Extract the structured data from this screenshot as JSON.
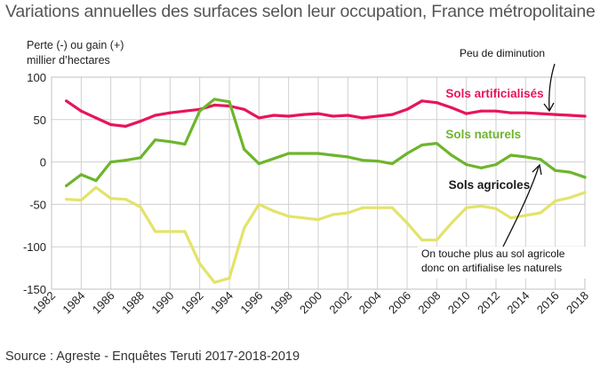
{
  "title": "Variations annuelles des surfaces selon leur occupation, France métropolitaine",
  "source": "Source : Agreste - Enquêtes Teruti 2017-2018-2019",
  "chart_data": {
    "type": "line",
    "ylabel_line1": "Perte (-) ou gain (+)",
    "ylabel_line2": "millier d’hectares",
    "ylim": [
      -150,
      100
    ],
    "yticks": [
      100,
      50,
      0,
      -50,
      -100,
      -150
    ],
    "xlim": [
      1982,
      2018
    ],
    "xticks": [
      1982,
      1984,
      1986,
      1988,
      1990,
      1992,
      1994,
      1996,
      1998,
      2000,
      2002,
      2004,
      2006,
      2008,
      2010,
      2012,
      2014,
      2016,
      2018
    ],
    "grid": true,
    "series": [
      {
        "name": "Sols artificialisés",
        "color": "#e8145a",
        "x": [
          1983,
          1984,
          1985,
          1986,
          1987,
          1988,
          1989,
          1990,
          1991,
          1992,
          1993,
          1994,
          1995,
          1996,
          1997,
          1998,
          1999,
          2000,
          2001,
          2002,
          2003,
          2004,
          2005,
          2006,
          2007,
          2008,
          2009,
          2010,
          2011,
          2012,
          2013,
          2014,
          2015,
          2016,
          2017,
          2018
        ],
        "values": [
          72,
          60,
          52,
          44,
          42,
          48,
          55,
          58,
          60,
          62,
          67,
          66,
          62,
          52,
          55,
          54,
          56,
          57,
          54,
          55,
          52,
          54,
          56,
          62,
          72,
          70,
          64,
          57,
          60,
          60,
          58,
          58,
          57,
          56,
          55,
          54
        ]
      },
      {
        "name": "Sols naturels",
        "color": "#6db52d",
        "x": [
          1983,
          1984,
          1985,
          1986,
          1987,
          1988,
          1989,
          1990,
          1991,
          1992,
          1993,
          1994,
          1995,
          1996,
          1997,
          1998,
          1999,
          2000,
          2001,
          2002,
          2003,
          2004,
          2005,
          2006,
          2007,
          2008,
          2009,
          2010,
          2011,
          2012,
          2013,
          2014,
          2015,
          2016,
          2017,
          2018
        ],
        "values": [
          -28,
          -15,
          -22,
          0,
          2,
          5,
          26,
          24,
          21,
          60,
          74,
          71,
          15,
          -2,
          4,
          10,
          10,
          10,
          8,
          6,
          2,
          1,
          -2,
          10,
          20,
          22,
          8,
          -3,
          -7,
          -3,
          8,
          6,
          3,
          -10,
          -12,
          -18
        ]
      },
      {
        "name": "Sols agricoles",
        "color": "#e3e36a",
        "x": [
          1983,
          1984,
          1985,
          1986,
          1987,
          1988,
          1989,
          1990,
          1991,
          1992,
          1993,
          1994,
          1995,
          1996,
          1997,
          1998,
          1999,
          2000,
          2001,
          2002,
          2003,
          2004,
          2005,
          2006,
          2007,
          2008,
          2009,
          2010,
          2011,
          2012,
          2013,
          2014,
          2015,
          2016,
          2017,
          2018
        ],
        "values": [
          -44,
          -45,
          -30,
          -43,
          -44,
          -53,
          -82,
          -82,
          -82,
          -120,
          -142,
          -137,
          -78,
          -50,
          -58,
          -64,
          -66,
          -68,
          -62,
          -60,
          -54,
          -54,
          -54,
          -72,
          -92,
          -92,
          -72,
          -54,
          -52,
          -55,
          -66,
          -63,
          -60,
          -46,
          -42,
          -36
        ]
      }
    ],
    "series_labels": [
      {
        "text": "Sols artificialisés",
        "color": "#e8145a",
        "x": 2008.6,
        "y": 76
      },
      {
        "text": "Sols naturels",
        "color": "#6db52d",
        "x": 2008.6,
        "y": 28
      },
      {
        "text": "Sols agricoles",
        "color": "#1a1a1a",
        "x": 2008.8,
        "y": -32
      }
    ],
    "annotations": [
      {
        "text": "Peu de diminution"
      },
      {
        "text": "On touche plus au sol agricole"
      },
      {
        "text": "donc on artifialise les naturels"
      }
    ]
  }
}
